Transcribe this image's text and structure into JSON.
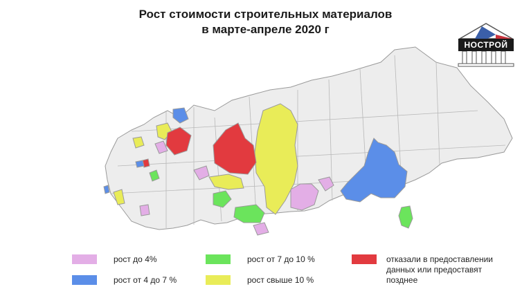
{
  "title_line1": "Рост стоимости строительных материалов",
  "title_line2": "в марте-апреле 2020 г",
  "logo_text": "НОСТРОЙ",
  "legend": [
    {
      "label": "рост до 4%",
      "color": "#e3aee6"
    },
    {
      "label": "рост от 4 до 7 %",
      "color": "#5b8ee8"
    },
    {
      "label": "рост от 7 до 10 %",
      "color": "#6be45c"
    },
    {
      "label": "рост свыше 10 %",
      "color": "#e9ec58"
    },
    {
      "label": "отказали в предоставлении данных или предоставят позднее",
      "color": "#e23a3f"
    }
  ],
  "colors": {
    "base": "#ededed",
    "border": "#9a9a9a",
    "pink": "#e3aee6",
    "blue": "#5b8ee8",
    "green": "#6be45c",
    "yellow": "#e9ec58",
    "red": "#e23a3f",
    "logo_blue": "#3b5fa8",
    "logo_red": "#c8323c"
  }
}
